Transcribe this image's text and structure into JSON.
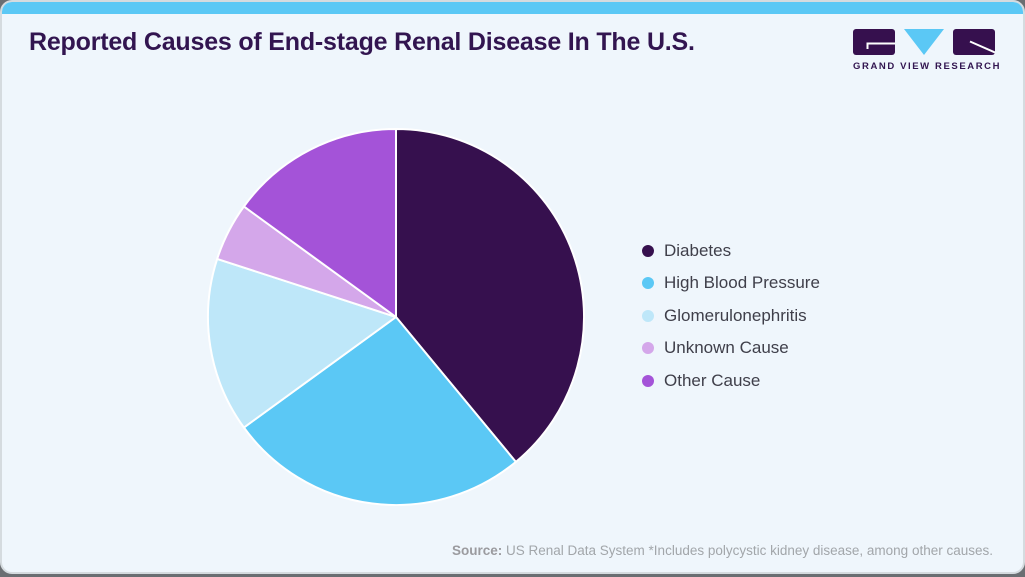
{
  "page": {
    "title": "Reported Causes of End-stage Renal Disease In The U.S.",
    "source": {
      "label": "Source:",
      "text": " US Renal Data System *Includes polycystic kidney disease, among other causes."
    },
    "brand": {
      "wordmark": "GRAND VIEW RESEARCH",
      "logo_purple": "#36104E",
      "logo_blue": "#5BC8F5"
    },
    "theme": {
      "card_background": "#EFF6FC",
      "topbar_color": "#5BC8F5",
      "title_color": "#321550",
      "legend_text_color": "#3F3F4A",
      "source_text_color": "#A2A6AA"
    }
  },
  "chart_data": {
    "type": "pie",
    "title": "Reported Causes of End-stage Renal Disease In The U.S.",
    "categories": [
      "Diabetes",
      "High Blood Pressure",
      "Glomerulonephritis",
      "Unknown Cause",
      "Other Cause"
    ],
    "values": [
      39,
      26,
      15,
      5,
      15
    ],
    "unit": "percent",
    "colors": [
      "#36104E",
      "#5BC8F5",
      "#BEE7F9",
      "#D4A7EA",
      "#A453D8"
    ],
    "start_angle": "top",
    "direction": "clockwise",
    "slice_separator_color": "#FFFFFF",
    "legend_position": "right",
    "data_labels": false
  }
}
